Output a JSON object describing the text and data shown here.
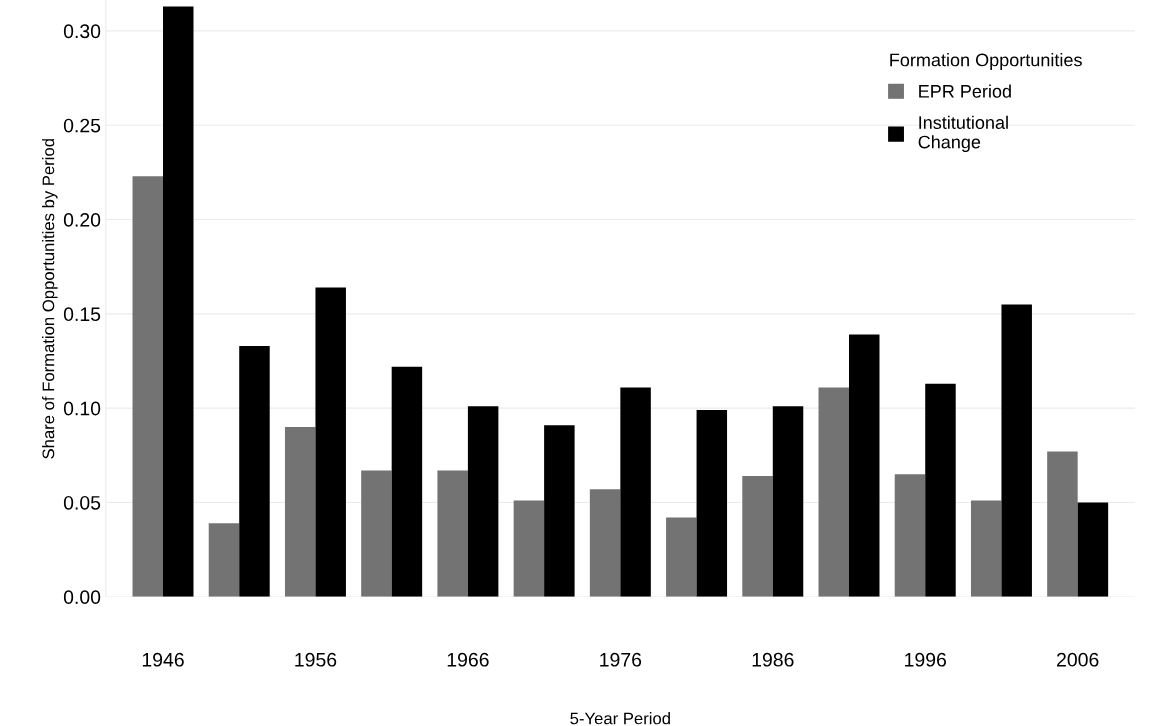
{
  "chart_data": {
    "type": "bar",
    "xlabel": "5-Year Period",
    "ylabel": "Share of Formation Opportunities by Period",
    "legend_title": "Formation Opportunities",
    "categories": [
      "1946",
      null,
      "1956",
      null,
      "1966",
      null,
      "1976",
      null,
      "1986",
      null,
      "1996",
      null,
      "2006"
    ],
    "series": [
      {
        "name": "EPR Period",
        "color": "#737373",
        "values": [
          0.223,
          0.039,
          0.09,
          0.067,
          0.067,
          0.051,
          0.057,
          0.042,
          0.064,
          0.111,
          0.065,
          0.051,
          0.077
        ]
      },
      {
        "name": "Institutional\nChange",
        "color": "#000000",
        "values": [
          0.313,
          0.133,
          0.164,
          0.122,
          0.101,
          0.091,
          0.111,
          0.099,
          0.101,
          0.139,
          0.113,
          0.155,
          0.05
        ]
      }
    ],
    "ylim": [
      0,
      0.316
    ],
    "yticks": [
      {
        "value": 0,
        "label": "0.00"
      },
      {
        "value": 0.05,
        "label": "0.05"
      },
      {
        "value": 0.1,
        "label": "0.10"
      },
      {
        "value": 0.15,
        "label": "0.15"
      },
      {
        "value": 0.2,
        "label": "0.20"
      },
      {
        "value": 0.25,
        "label": "0.25"
      },
      {
        "value": 0.3,
        "label": "0.30"
      }
    ],
    "grid": "y",
    "legend": "top right"
  }
}
